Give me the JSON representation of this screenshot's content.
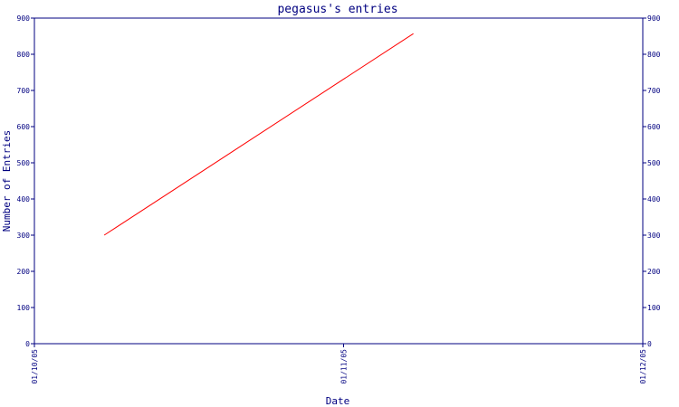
{
  "chart_data": {
    "type": "line",
    "title": "pegasus's entries",
    "xlabel": "Date",
    "ylabel": "Number of Entries",
    "x_ticks": [
      "01/10/05",
      "01/11/05",
      "01/12/05"
    ],
    "y_ticks": [
      0,
      100,
      200,
      300,
      400,
      500,
      600,
      700,
      800,
      900
    ],
    "ylim": [
      0,
      900
    ],
    "xlim": [
      "2005-10-01",
      "2005-12-01"
    ],
    "series": [
      {
        "color": "#ff0000",
        "points": [
          {
            "x": "2005-10-08",
            "y": 300
          },
          {
            "x": "2005-11-08",
            "y": 857
          }
        ]
      }
    ],
    "axis_color": "#000080",
    "grid": false,
    "right_axis_mirrored": true
  }
}
